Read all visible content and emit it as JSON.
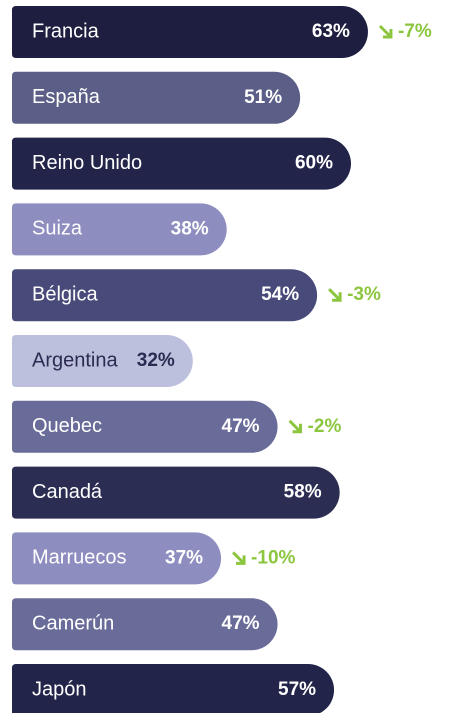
{
  "chart_data": {
    "type": "bar",
    "categories": [
      "Francia",
      "España",
      "Reino Unido",
      "Suiza",
      "Bélgica",
      "Argentina",
      "Quebec",
      "Canadá",
      "Marruecos",
      "Camerún",
      "Japón"
    ],
    "values": [
      63,
      51,
      60,
      38,
      54,
      32,
      47,
      58,
      37,
      47,
      57
    ],
    "value_labels": [
      "63%",
      "51%",
      "60%",
      "38%",
      "54%",
      "32%",
      "47%",
      "58%",
      "37%",
      "47%",
      "57%"
    ],
    "colors": [
      "#1e1f40",
      "#5b5e86",
      "#23244a",
      "#8e8dc0",
      "#484a7a",
      "#bcc0dd",
      "#696b98",
      "#2c2d52",
      "#8e8dc0",
      "#696b98",
      "#23244a"
    ],
    "text_colors": [
      "#ffffff",
      "#ffffff",
      "#ffffff",
      "#ffffff",
      "#ffffff",
      "#2a2b50",
      "#ffffff",
      "#ffffff",
      "#ffffff",
      "#ffffff",
      "#ffffff"
    ],
    "changes": [
      -7,
      null,
      null,
      null,
      -3,
      null,
      -2,
      null,
      -10,
      null,
      null
    ],
    "change_labels": [
      "-7%",
      null,
      null,
      null,
      "-3%",
      null,
      "-2%",
      null,
      "-10%",
      null,
      null
    ],
    "change_color": "#8cc63f"
  }
}
